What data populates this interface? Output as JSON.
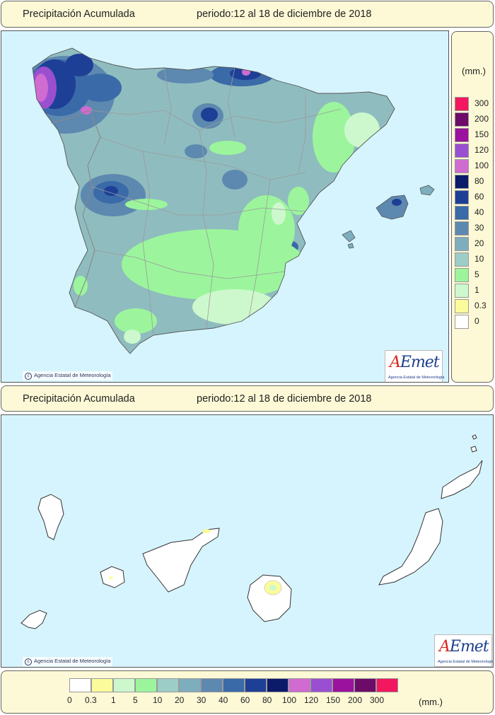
{
  "top_title": {
    "label": "Precipitación Acumulada",
    "period": "periodo:12 al 18 de diciembre de 2018"
  },
  "canary_title": {
    "label": "Precipitación Acumulada",
    "period": "periodo:12 al 18 de diciembre de 2018"
  },
  "copyright": "Agencia Estatal de Meteorología",
  "logo": {
    "word_a": "A",
    "word_rest": "Emet",
    "subtitle": "Agencia Estatal de Meteorología"
  },
  "legend": {
    "unit": "(mm.)",
    "scale_vertical": [
      "300",
      "200",
      "150",
      "120",
      "100",
      "80",
      "60",
      "40",
      "30",
      "20",
      "10",
      "5",
      "1",
      "0.3",
      "0"
    ],
    "scale_horizontal": [
      "0",
      "0.3",
      "1",
      "5",
      "10",
      "20",
      "30",
      "40",
      "60",
      "80",
      "100",
      "120",
      "150",
      "200",
      "300"
    ],
    "colors": [
      "#ffffff",
      "#fbfb9c",
      "#cdf8cd",
      "#9cf59c",
      "#9dcdc7",
      "#7eaebd",
      "#5d89b0",
      "#3a6aa8",
      "#1e3f96",
      "#0c1a6a",
      "#cf6bd1",
      "#9a4fd0",
      "#9a129e",
      "#6d0c68",
      "#f2175e"
    ]
  },
  "colors": {
    "panel_bg": "#fdf9d6",
    "sea": "#d6f4fd",
    "land_base": "#8fbcbf"
  }
}
